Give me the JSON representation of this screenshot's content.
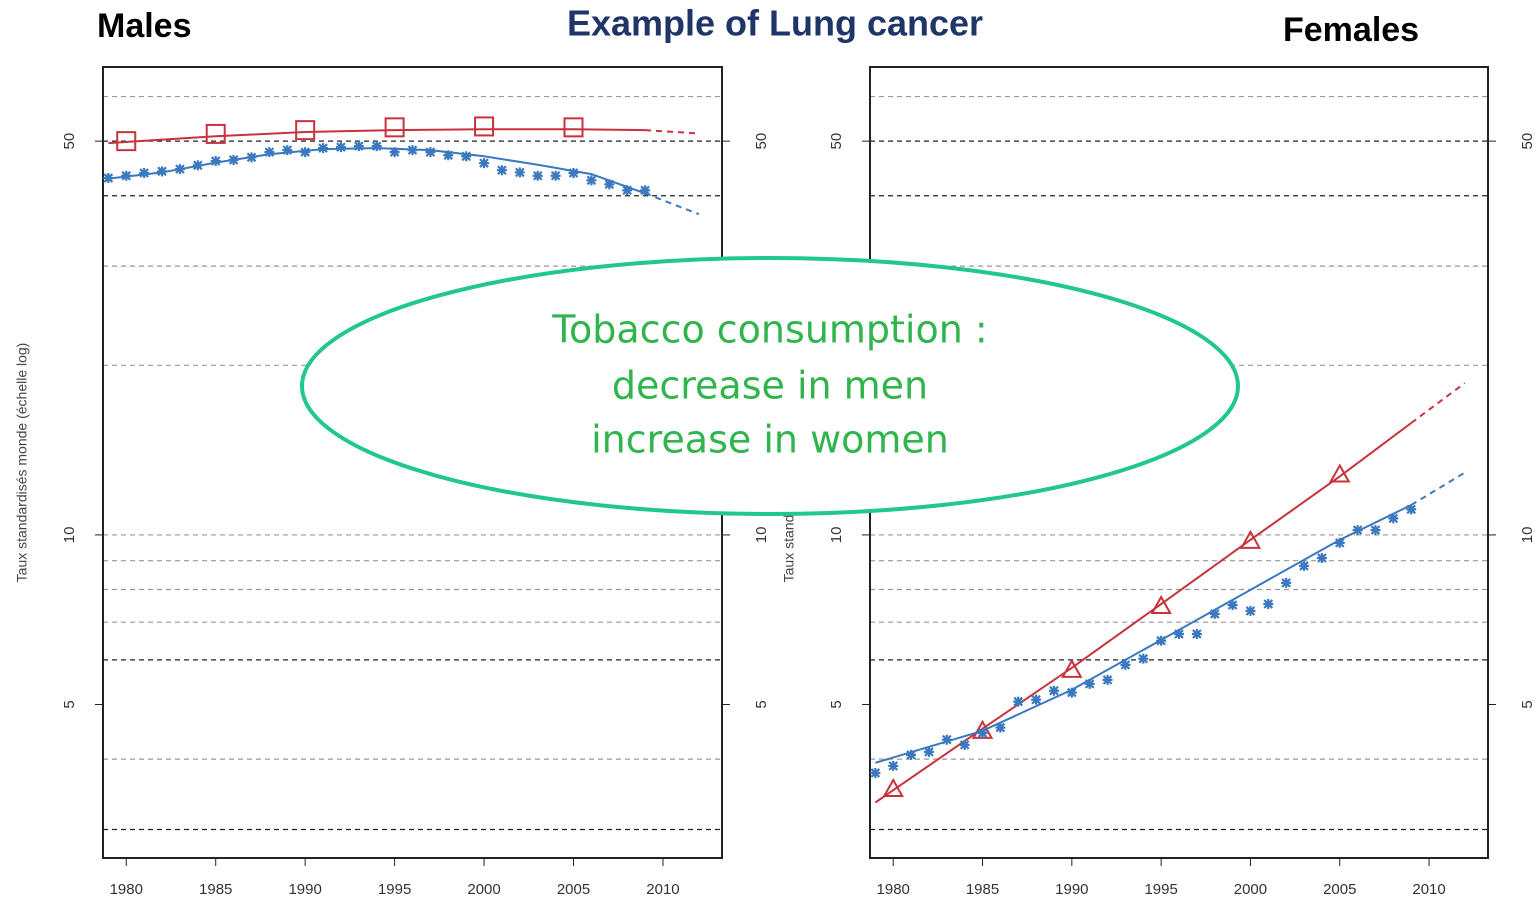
{
  "header": {
    "title": "Example of Lung cancer"
  },
  "annotation": {
    "lines": [
      "Tobacco consumption  :",
      "decrease in men",
      "increase in women"
    ]
  },
  "chart_data": [
    {
      "type": "line",
      "title": "Males",
      "y_label": "Taux standardisés monde (échelle log)",
      "log_y": true,
      "xlim": [
        1978.7,
        2013.3
      ],
      "xticks": [
        1980,
        1985,
        1990,
        1995,
        2000,
        2005,
        2010
      ],
      "ylim": [
        2.67,
        67.7
      ],
      "yticks": [
        5,
        10,
        50
      ],
      "gridlines_dark": [
        3,
        6,
        40,
        50
      ],
      "gridlines_light": [
        4,
        7,
        8,
        9,
        10,
        20,
        30,
        60
      ],
      "series": [
        {
          "color": "#c8323c",
          "marker": "square",
          "x": [
            1980,
            1985,
            1990,
            1995,
            2000,
            2005
          ],
          "values": [
            50,
            51.5,
            52.3,
            52.9,
            53.1,
            52.9
          ]
        },
        {
          "color": "#c8323c",
          "line": "solid",
          "x": [
            1979,
            1985,
            1990,
            1995,
            2000,
            2005,
            2009
          ],
          "values": [
            49.6,
            51.0,
            51.9,
            52.3,
            52.5,
            52.5,
            52.3
          ]
        },
        {
          "color": "#c8323c",
          "line": "dashed",
          "x": [
            2009,
            2012
          ],
          "values": [
            52.3,
            51.6
          ]
        },
        {
          "color": "#3a78c0",
          "marker": "star",
          "x": [
            1979,
            1980,
            1981,
            1982,
            1983,
            1984,
            1985,
            1986,
            1987,
            1988,
            1989,
            1990,
            1991,
            1992,
            1993,
            1994,
            1995,
            1996,
            1997,
            1998,
            1999,
            2000,
            2001,
            2002,
            2003,
            2004,
            2005,
            2006,
            2007,
            2008,
            2009
          ],
          "values": [
            43.0,
            43.4,
            43.9,
            44.2,
            44.6,
            45.3,
            46.1,
            46.3,
            46.8,
            47.8,
            48.2,
            47.8,
            48.6,
            48.8,
            49.0,
            49.0,
            47.8,
            48.2,
            47.8,
            47.2,
            47.0,
            45.7,
            44.4,
            44.0,
            43.4,
            43.4,
            43.9,
            42.6,
            41.9,
            40.9,
            40.9
          ]
        },
        {
          "color": "#3a78c0",
          "line": "solid",
          "x": [
            1979,
            1982,
            1985,
            1988,
            1991,
            1994,
            1997,
            2000,
            2003,
            2006,
            2009
          ],
          "values": [
            42.9,
            44.0,
            45.8,
            47.4,
            48.4,
            48.6,
            48.2,
            47.0,
            45.4,
            43.7,
            40.4
          ]
        },
        {
          "color": "#3a78c0",
          "line": "dashed",
          "x": [
            2009,
            2012
          ],
          "values": [
            40.4,
            37.1
          ]
        }
      ]
    },
    {
      "type": "line",
      "title": "Females",
      "y_label": "Taux standardisés monde (échelle log)",
      "log_y": true,
      "xlim": [
        1978.7,
        2013.3
      ],
      "xticks": [
        1980,
        1985,
        1990,
        1995,
        2000,
        2005,
        2010
      ],
      "ylim": [
        2.67,
        67.7
      ],
      "yticks": [
        5,
        10,
        50
      ],
      "gridlines_dark": [
        3,
        6,
        40,
        50
      ],
      "gridlines_light": [
        4,
        7,
        8,
        9,
        10,
        20,
        30,
        60
      ],
      "series": [
        {
          "color": "#c8323c",
          "marker": "triangle",
          "x": [
            1980,
            1985,
            1990,
            1995,
            2000,
            2005
          ],
          "values": [
            3.54,
            4.49,
            5.76,
            7.48,
            9.76,
            12.8
          ]
        },
        {
          "color": "#c8323c",
          "line": "solid",
          "x": [
            1979,
            1985,
            1990,
            1995,
            2000,
            2005,
            2009
          ],
          "values": [
            3.35,
            4.53,
            5.81,
            7.54,
            9.8,
            12.7,
            15.8
          ]
        },
        {
          "color": "#c8323c",
          "line": "dashed",
          "x": [
            2009,
            2012
          ],
          "values": [
            15.8,
            18.6
          ]
        },
        {
          "color": "#3a78c0",
          "marker": "star",
          "x": [
            1979,
            1980,
            1981,
            1982,
            1983,
            1984,
            1985,
            1986,
            1987,
            1988,
            1989,
            1990,
            1991,
            1992,
            1993,
            1994,
            1995,
            1996,
            1997,
            1998,
            1999,
            2000,
            2001,
            2002,
            2003,
            2004,
            2005,
            2006,
            2007,
            2008,
            2009
          ],
          "values": [
            3.78,
            3.89,
            4.07,
            4.12,
            4.33,
            4.24,
            4.45,
            4.55,
            5.06,
            5.1,
            5.29,
            5.25,
            5.44,
            5.53,
            5.88,
            6.03,
            6.49,
            6.67,
            6.67,
            7.24,
            7.51,
            7.33,
            7.54,
            8.22,
            8.81,
            9.1,
            9.68,
            10.2,
            10.2,
            10.7,
            11.1
          ]
        },
        {
          "color": "#3a78c0",
          "line": "solid",
          "x": [
            1979,
            1985,
            1990,
            1995,
            2000,
            2005,
            2009
          ],
          "values": [
            3.94,
            4.49,
            5.31,
            6.51,
            7.99,
            9.8,
            11.3
          ]
        },
        {
          "color": "#3a78c0",
          "line": "dashed",
          "x": [
            2009,
            2012
          ],
          "values": [
            11.3,
            12.9
          ]
        }
      ]
    }
  ]
}
